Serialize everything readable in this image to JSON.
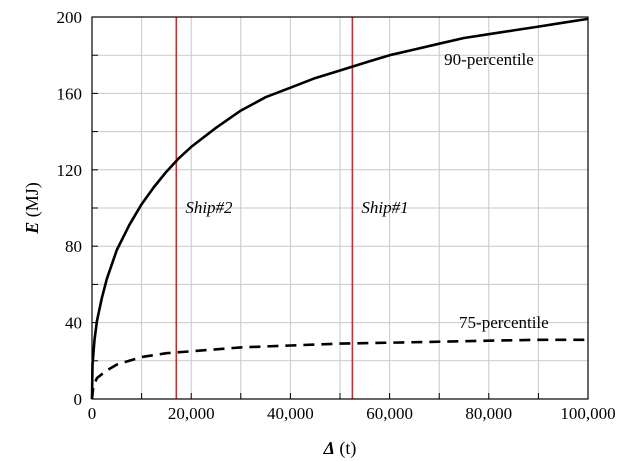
{
  "chart_data": {
    "type": "line",
    "title": "",
    "xlabel": {
      "symbol": "Δ",
      "unit": "(t)"
    },
    "ylabel": {
      "symbol": "E",
      "unit": "(MJ)"
    },
    "xlim": [
      0,
      100000
    ],
    "ylim": [
      0,
      200
    ],
    "xticks": [
      0,
      20000,
      40000,
      60000,
      80000,
      100000
    ],
    "xtick_labels": [
      "0",
      "20,000",
      "40,000",
      "60,000",
      "80,000",
      "100,000"
    ],
    "yticks": [
      0,
      40,
      80,
      120,
      160,
      200
    ],
    "ytick_labels": [
      "0",
      "40",
      "80",
      "120",
      "160",
      "200"
    ],
    "grid": true,
    "series": [
      {
        "name": "90-percentile",
        "style": "solid",
        "color": "#000000",
        "x": [
          0,
          100,
          500,
          1000,
          2000,
          3000,
          5000,
          7500,
          10000,
          12500,
          15000,
          17500,
          20000,
          25000,
          30000,
          35000,
          40000,
          45000,
          50000,
          55000,
          60000,
          65000,
          70000,
          75000,
          80000,
          85000,
          90000,
          95000,
          100000
        ],
        "values": [
          0,
          18,
          31,
          41,
          53,
          63,
          78,
          91,
          102,
          111,
          119,
          126,
          132,
          142,
          151,
          158,
          163,
          168,
          172,
          176,
          180,
          183,
          186,
          189,
          191,
          193,
          195,
          197,
          199
        ]
      },
      {
        "name": "75-percentile",
        "style": "dashed",
        "color": "#000000",
        "x": [
          0,
          200,
          500,
          1000,
          2000,
          3000,
          5000,
          7500,
          10000,
          15000,
          20000,
          30000,
          40000,
          50000,
          60000,
          70000,
          80000,
          90000,
          100000
        ],
        "values": [
          0,
          5,
          8,
          11,
          13,
          15,
          18,
          20,
          22,
          24,
          25,
          27,
          28,
          29,
          29.5,
          30,
          30.5,
          31,
          31
        ]
      }
    ],
    "vlines": [
      {
        "label": "Ship#2",
        "x": 17000,
        "color": "#d62728"
      },
      {
        "label": "Ship#1",
        "x": 52500,
        "color": "#d62728"
      }
    ]
  }
}
